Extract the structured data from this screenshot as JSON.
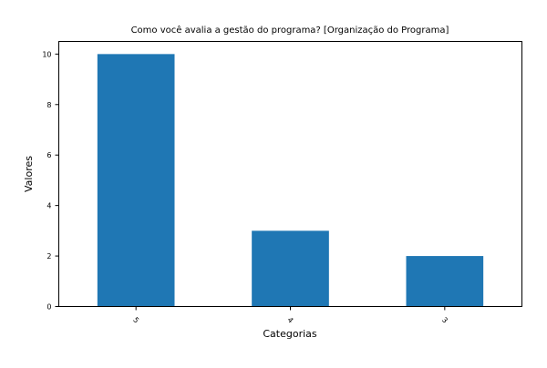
{
  "chart_data": {
    "type": "bar",
    "title": "Como você avalia a gestão do programa? [Organização do Programa]",
    "xlabel": "Categorias",
    "ylabel": "Valores",
    "categories": [
      "5",
      "4",
      "3"
    ],
    "values": [
      10,
      3,
      2
    ],
    "ylim": [
      0,
      10.5
    ],
    "yticks": [
      0,
      2,
      4,
      6,
      8,
      10
    ],
    "grid": false,
    "legend": "none",
    "bar_color": "#1f77b4"
  }
}
